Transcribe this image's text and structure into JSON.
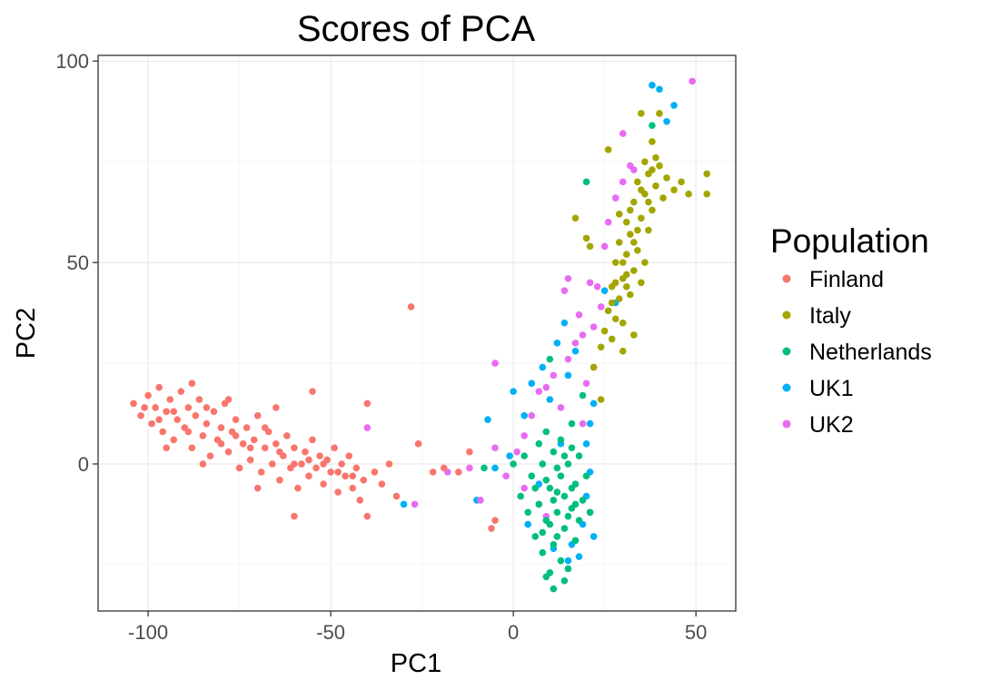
{
  "chart_data": {
    "type": "scatter",
    "title": "Scores of PCA",
    "xlabel": "PC1",
    "ylabel": "PC2",
    "xlim": [
      -113.7,
      60.9
    ],
    "ylim": [
      -36.5,
      101.4
    ],
    "x_ticks": [
      -100,
      -50,
      0,
      50
    ],
    "x_tick_labels": [
      "-100",
      "-50",
      "0",
      "50"
    ],
    "y_ticks": [
      0,
      50,
      100
    ],
    "y_tick_labels": [
      "0",
      "50",
      "100"
    ],
    "x_minor": [
      -75,
      -25,
      25
    ],
    "y_minor": [
      -25,
      25,
      75
    ],
    "grid": true,
    "legend": {
      "title": "Population",
      "placement": "right"
    },
    "series": [
      {
        "name": "Finland",
        "color": "#F8766D",
        "points": [
          [
            -104,
            15
          ],
          [
            -102,
            12
          ],
          [
            -100,
            17
          ],
          [
            -99,
            10
          ],
          [
            -98,
            14
          ],
          [
            -97,
            19
          ],
          [
            -96,
            8
          ],
          [
            -95,
            13
          ],
          [
            -94,
            16
          ],
          [
            -93,
            6
          ],
          [
            -92,
            11
          ],
          [
            -91,
            18
          ],
          [
            -90,
            9
          ],
          [
            -89,
            14
          ],
          [
            -88,
            4
          ],
          [
            -87,
            12
          ],
          [
            -86,
            16
          ],
          [
            -85,
            7
          ],
          [
            -84,
            10
          ],
          [
            -83,
            2
          ],
          [
            -82,
            13
          ],
          [
            -81,
            6
          ],
          [
            -80,
            9
          ],
          [
            -79,
            15
          ],
          [
            -78,
            3
          ],
          [
            -77,
            8
          ],
          [
            -76,
            11
          ],
          [
            -75,
            -1
          ],
          [
            -74,
            5
          ],
          [
            -73,
            9
          ],
          [
            -72,
            1
          ],
          [
            -71,
            6
          ],
          [
            -70,
            12
          ],
          [
            -69,
            -2
          ],
          [
            -68,
            4
          ],
          [
            -67,
            8
          ],
          [
            -66,
            0
          ],
          [
            -65,
            5
          ],
          [
            -64,
            -4
          ],
          [
            -63,
            2
          ],
          [
            -62,
            7
          ],
          [
            -61,
            -1
          ],
          [
            -60,
            4
          ],
          [
            -59,
            -6
          ],
          [
            -58,
            0
          ],
          [
            -57,
            3
          ],
          [
            -56,
            -3
          ],
          [
            -55,
            6
          ],
          [
            -54,
            -1
          ],
          [
            -53,
            2
          ],
          [
            -52,
            -5
          ],
          [
            -51,
            1
          ],
          [
            -50,
            -2
          ],
          [
            -49,
            4
          ],
          [
            -48,
            -7
          ],
          [
            -47,
            0
          ],
          [
            -46,
            -3
          ],
          [
            -45,
            2
          ],
          [
            -44,
            -6
          ],
          [
            -43,
            -1
          ],
          [
            -42,
            -9
          ],
          [
            -41,
            -4
          ],
          [
            -40,
            15
          ],
          [
            -38,
            -2
          ],
          [
            -36,
            -5
          ],
          [
            -34,
            0
          ],
          [
            -32,
            -8
          ],
          [
            -28,
            39
          ],
          [
            -26,
            5
          ],
          [
            -22,
            -2
          ],
          [
            -19,
            -1
          ],
          [
            -15,
            -2
          ],
          [
            -12,
            3
          ],
          [
            -6,
            -16
          ],
          [
            -5,
            -14
          ],
          [
            -40,
            -13
          ],
          [
            -60,
            -13
          ],
          [
            -88,
            20
          ],
          [
            -95,
            4
          ],
          [
            -70,
            -6
          ],
          [
            -78,
            16
          ],
          [
            -85,
            0
          ],
          [
            -55,
            18
          ],
          [
            -65,
            14
          ],
          [
            -101,
            14
          ],
          [
            -97,
            11
          ],
          [
            -93,
            13
          ],
          [
            -89,
            8
          ],
          [
            -84,
            14
          ],
          [
            -80,
            5
          ],
          [
            -76,
            7
          ],
          [
            -72,
            4
          ],
          [
            -68,
            9
          ],
          [
            -64,
            3
          ],
          [
            -60,
            0
          ],
          [
            -56,
            1
          ],
          [
            -52,
            0
          ],
          [
            -48,
            -2
          ],
          [
            -44,
            -3
          ]
        ]
      },
      {
        "name": "Italy",
        "color": "#A3A500",
        "points": [
          [
            22,
            24
          ],
          [
            24,
            29
          ],
          [
            25,
            33
          ],
          [
            26,
            38
          ],
          [
            27,
            31
          ],
          [
            27,
            44
          ],
          [
            28,
            36
          ],
          [
            28,
            50
          ],
          [
            29,
            41
          ],
          [
            29,
            55
          ],
          [
            30,
            46
          ],
          [
            30,
            35
          ],
          [
            31,
            52
          ],
          [
            31,
            60
          ],
          [
            32,
            42
          ],
          [
            32,
            57
          ],
          [
            33,
            48
          ],
          [
            33,
            65
          ],
          [
            34,
            53
          ],
          [
            34,
            70
          ],
          [
            35,
            61
          ],
          [
            35,
            45
          ],
          [
            36,
            67
          ],
          [
            36,
            75
          ],
          [
            37,
            58
          ],
          [
            37,
            72
          ],
          [
            38,
            63
          ],
          [
            38,
            80
          ],
          [
            39,
            69
          ],
          [
            39,
            76
          ],
          [
            40,
            74
          ],
          [
            41,
            66
          ],
          [
            42,
            71
          ],
          [
            44,
            68
          ],
          [
            46,
            70
          ],
          [
            48,
            67
          ],
          [
            53,
            72
          ],
          [
            53,
            67
          ],
          [
            26,
            78
          ],
          [
            17,
            61
          ],
          [
            21,
            54
          ],
          [
            20,
            56
          ],
          [
            35,
            87
          ],
          [
            40,
            87
          ],
          [
            30,
            28
          ],
          [
            33,
            32
          ],
          [
            24,
            16
          ],
          [
            31,
            44
          ],
          [
            29,
            62
          ],
          [
            36,
            50
          ],
          [
            27,
            40
          ],
          [
            30,
            50
          ],
          [
            32,
            63
          ],
          [
            34,
            58
          ],
          [
            35,
            68
          ],
          [
            37,
            65
          ],
          [
            38,
            73
          ],
          [
            33,
            55
          ],
          [
            31,
            47
          ],
          [
            28,
            45
          ]
        ]
      },
      {
        "name": "Netherlands",
        "color": "#00BF7D",
        "points": [
          [
            2,
            -8
          ],
          [
            3,
            2
          ],
          [
            4,
            -12
          ],
          [
            5,
            -3
          ],
          [
            6,
            -18
          ],
          [
            7,
            5
          ],
          [
            7,
            -10
          ],
          [
            8,
            -22
          ],
          [
            8,
            0
          ],
          [
            9,
            -14
          ],
          [
            9,
            8
          ],
          [
            10,
            -27
          ],
          [
            10,
            -6
          ],
          [
            11,
            -20
          ],
          [
            11,
            3
          ],
          [
            12,
            -12
          ],
          [
            12,
            -1
          ],
          [
            13,
            -24
          ],
          [
            13,
            6
          ],
          [
            14,
            -8
          ],
          [
            14,
            -16
          ],
          [
            15,
            0
          ],
          [
            15,
            -26
          ],
          [
            16,
            -11
          ],
          [
            16,
            4
          ],
          [
            17,
            -19
          ],
          [
            17,
            -5
          ],
          [
            18,
            -14
          ],
          [
            18,
            2
          ],
          [
            19,
            -9
          ],
          [
            20,
            -3
          ],
          [
            21,
            -12
          ],
          [
            11,
            -31
          ],
          [
            9,
            -28
          ],
          [
            14,
            -29
          ],
          [
            20,
            70
          ],
          [
            10,
            26
          ],
          [
            -8,
            -1
          ],
          [
            0,
            0
          ],
          [
            38,
            84
          ],
          [
            19,
            17
          ],
          [
            16,
            10
          ],
          [
            6,
            -6
          ],
          [
            9,
            -4
          ],
          [
            11,
            -9
          ],
          [
            13,
            -3
          ],
          [
            15,
            -13
          ],
          [
            12,
            -18
          ],
          [
            10,
            -15
          ],
          [
            14,
            2
          ],
          [
            16,
            -6
          ],
          [
            8,
            -17
          ],
          [
            12,
            -7
          ],
          [
            17,
            -10
          ]
        ]
      },
      {
        "name": "UK1",
        "color": "#00B0F6",
        "points": [
          [
            -7,
            11
          ],
          [
            -10,
            -9
          ],
          [
            -5,
            -1
          ],
          [
            -1,
            2
          ],
          [
            0,
            18
          ],
          [
            3,
            12
          ],
          [
            5,
            20
          ],
          [
            7,
            -5
          ],
          [
            8,
            24
          ],
          [
            10,
            16
          ],
          [
            12,
            30
          ],
          [
            14,
            35
          ],
          [
            15,
            22
          ],
          [
            16,
            -20
          ],
          [
            18,
            -23
          ],
          [
            19,
            -15
          ],
          [
            20,
            -8
          ],
          [
            21,
            -2
          ],
          [
            22,
            -18
          ],
          [
            20,
            5
          ],
          [
            17,
            28
          ],
          [
            22,
            15
          ],
          [
            25,
            43
          ],
          [
            28,
            40
          ],
          [
            38,
            94
          ],
          [
            40,
            93
          ],
          [
            42,
            85
          ],
          [
            44,
            89
          ],
          [
            -30,
            -10
          ],
          [
            11,
            -21
          ],
          [
            15,
            -24
          ],
          [
            4,
            -15
          ],
          [
            13,
            5
          ],
          [
            21,
            10
          ]
        ]
      },
      {
        "name": "UK2",
        "color": "#E76BF3",
        "points": [
          [
            -40,
            9
          ],
          [
            -27,
            -10
          ],
          [
            -18,
            -2
          ],
          [
            -12,
            -1
          ],
          [
            -9,
            -9
          ],
          [
            -5,
            4
          ],
          [
            -2,
            -3
          ],
          [
            1,
            3
          ],
          [
            3,
            -6
          ],
          [
            5,
            12
          ],
          [
            7,
            -10
          ],
          [
            9,
            19
          ],
          [
            11,
            22
          ],
          [
            13,
            14
          ],
          [
            15,
            26
          ],
          [
            17,
            30
          ],
          [
            18,
            37
          ],
          [
            19,
            32
          ],
          [
            20,
            20
          ],
          [
            21,
            -12
          ],
          [
            22,
            34
          ],
          [
            23,
            44
          ],
          [
            24,
            39
          ],
          [
            25,
            54
          ],
          [
            26,
            60
          ],
          [
            28,
            66
          ],
          [
            30,
            70
          ],
          [
            32,
            74
          ],
          [
            33,
            73
          ],
          [
            30,
            82
          ],
          [
            49,
            95
          ],
          [
            15,
            46
          ],
          [
            14,
            43
          ],
          [
            21,
            45
          ],
          [
            -5,
            25
          ],
          [
            19,
            10
          ],
          [
            22,
            24
          ],
          [
            9,
            -13
          ],
          [
            7,
            18
          ],
          [
            3,
            7
          ]
        ]
      }
    ]
  }
}
